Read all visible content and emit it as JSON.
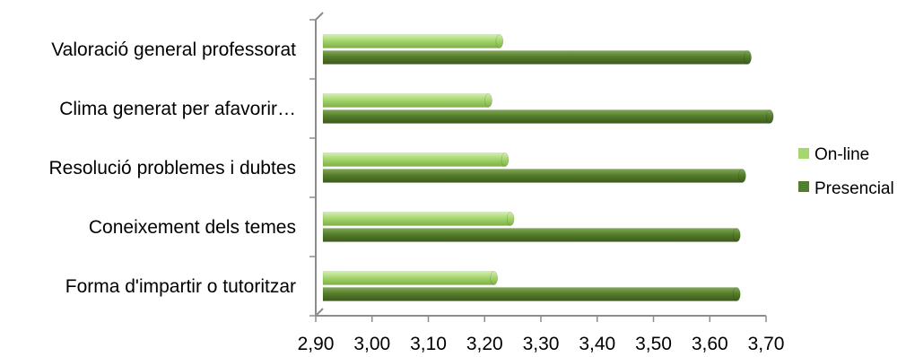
{
  "chart_data": {
    "type": "bar",
    "orientation": "horizontal",
    "style": "3d-cylinder",
    "categories": [
      "Valoració general professorat",
      "Clima generat per afavorir…",
      "Resolució problemes i dubtes",
      "Coneixement dels temes",
      "Forma d'impartir o tutoritzar"
    ],
    "series": [
      {
        "name": "On-line",
        "color": "#a6d66e",
        "values": [
          3.22,
          3.2,
          3.23,
          3.24,
          3.21
        ]
      },
      {
        "name": "Presencial",
        "color": "#567d2c",
        "values": [
          3.67,
          3.71,
          3.66,
          3.65,
          3.65
        ]
      }
    ],
    "xlim": [
      2.9,
      3.7
    ],
    "xticks": [
      "2,90",
      "3,00",
      "3,10",
      "3,20",
      "3,30",
      "3,40",
      "3,50",
      "3,60",
      "3,70"
    ],
    "grid": false,
    "legend_position": "right"
  }
}
